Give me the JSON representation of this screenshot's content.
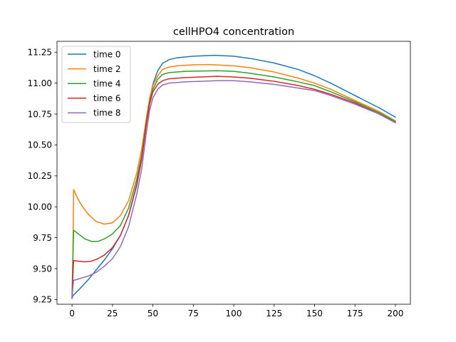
{
  "chart_data": {
    "type": "line",
    "title": "cellHPO4 concentration",
    "xlabel": "",
    "ylabel": "",
    "xlim": [
      -9.3,
      209.3
    ],
    "ylim": [
      9.212,
      11.338
    ],
    "xticks": [
      0,
      25,
      50,
      75,
      100,
      125,
      150,
      175,
      200
    ],
    "yticks": [
      9.25,
      9.5,
      9.75,
      10.0,
      10.25,
      10.5,
      10.75,
      11.0,
      11.25
    ],
    "ytick_labels": [
      "9.25",
      "9.50",
      "9.75",
      "10.00",
      "10.25",
      "10.50",
      "10.75",
      "11.00",
      "11.25"
    ],
    "grid": false,
    "legend_position": "upper-left",
    "series": [
      {
        "name": "time 0",
        "color": "#1f77b4",
        "points": [
          [
            0,
            9.26
          ],
          [
            0.5,
            9.28
          ],
          [
            5,
            9.34
          ],
          [
            10,
            9.41
          ],
          [
            15,
            9.49
          ],
          [
            20,
            9.57
          ],
          [
            25,
            9.66
          ],
          [
            30,
            9.77
          ],
          [
            35,
            9.93
          ],
          [
            40,
            10.17
          ],
          [
            43,
            10.38
          ],
          [
            46,
            10.68
          ],
          [
            48,
            10.87
          ],
          [
            50,
            10.99
          ],
          [
            53,
            11.1
          ],
          [
            56,
            11.16
          ],
          [
            60,
            11.19
          ],
          [
            65,
            11.205
          ],
          [
            75,
            11.218
          ],
          [
            88,
            11.225
          ],
          [
            100,
            11.218
          ],
          [
            110,
            11.2
          ],
          [
            125,
            11.163
          ],
          [
            140,
            11.11
          ],
          [
            150,
            11.06
          ],
          [
            160,
            11.0
          ],
          [
            175,
            10.9
          ],
          [
            190,
            10.8
          ],
          [
            200,
            10.725
          ]
        ]
      },
      {
        "name": "time 2",
        "color": "#ff7f0e",
        "points": [
          [
            0,
            9.26
          ],
          [
            0.5,
            9.6
          ],
          [
            1,
            10.14
          ],
          [
            3,
            10.08
          ],
          [
            6,
            10.01
          ],
          [
            10,
            9.94
          ],
          [
            15,
            9.88
          ],
          [
            20,
            9.86
          ],
          [
            25,
            9.87
          ],
          [
            30,
            9.93
          ],
          [
            35,
            10.05
          ],
          [
            40,
            10.27
          ],
          [
            43,
            10.46
          ],
          [
            46,
            10.72
          ],
          [
            48,
            10.88
          ],
          [
            50,
            10.98
          ],
          [
            53,
            11.06
          ],
          [
            56,
            11.11
          ],
          [
            60,
            11.13
          ],
          [
            65,
            11.14
          ],
          [
            75,
            11.148
          ],
          [
            85,
            11.15
          ],
          [
            100,
            11.14
          ],
          [
            110,
            11.125
          ],
          [
            125,
            11.09
          ],
          [
            140,
            11.04
          ],
          [
            150,
            11.0
          ],
          [
            160,
            10.95
          ],
          [
            175,
            10.86
          ],
          [
            190,
            10.77
          ],
          [
            200,
            10.695
          ]
        ]
      },
      {
        "name": "time 4",
        "color": "#2ca02c",
        "points": [
          [
            0,
            9.26
          ],
          [
            0.5,
            9.55
          ],
          [
            1,
            9.81
          ],
          [
            4,
            9.78
          ],
          [
            8,
            9.74
          ],
          [
            12,
            9.72
          ],
          [
            16,
            9.72
          ],
          [
            20,
            9.74
          ],
          [
            25,
            9.78
          ],
          [
            30,
            9.85
          ],
          [
            35,
            9.99
          ],
          [
            40,
            10.22
          ],
          [
            43,
            10.41
          ],
          [
            46,
            10.69
          ],
          [
            48,
            10.85
          ],
          [
            50,
            10.95
          ],
          [
            53,
            11.03
          ],
          [
            56,
            11.07
          ],
          [
            60,
            11.085
          ],
          [
            70,
            11.095
          ],
          [
            90,
            11.1
          ],
          [
            100,
            11.095
          ],
          [
            110,
            11.08
          ],
          [
            125,
            11.05
          ],
          [
            140,
            11.01
          ],
          [
            150,
            10.98
          ],
          [
            160,
            10.93
          ],
          [
            175,
            10.85
          ],
          [
            190,
            10.76
          ],
          [
            200,
            10.69
          ]
        ]
      },
      {
        "name": "time 6",
        "color": "#d62728",
        "points": [
          [
            0,
            9.26
          ],
          [
            0.5,
            9.45
          ],
          [
            1,
            9.565
          ],
          [
            4,
            9.56
          ],
          [
            8,
            9.555
          ],
          [
            12,
            9.56
          ],
          [
            16,
            9.58
          ],
          [
            20,
            9.61
          ],
          [
            25,
            9.67
          ],
          [
            30,
            9.77
          ],
          [
            35,
            9.93
          ],
          [
            40,
            10.18
          ],
          [
            43,
            10.38
          ],
          [
            46,
            10.67
          ],
          [
            48,
            10.83
          ],
          [
            50,
            10.93
          ],
          [
            53,
            10.99
          ],
          [
            56,
            11.02
          ],
          [
            60,
            11.035
          ],
          [
            70,
            11.045
          ],
          [
            90,
            11.055
          ],
          [
            100,
            11.05
          ],
          [
            110,
            11.04
          ],
          [
            125,
            11.015
          ],
          [
            140,
            10.98
          ],
          [
            150,
            10.95
          ],
          [
            160,
            10.91
          ],
          [
            175,
            10.84
          ],
          [
            190,
            10.75
          ],
          [
            200,
            10.68
          ]
        ]
      },
      {
        "name": "time 8",
        "color": "#9467bd",
        "points": [
          [
            0,
            9.26
          ],
          [
            0.5,
            9.35
          ],
          [
            1,
            9.405
          ],
          [
            5,
            9.42
          ],
          [
            10,
            9.44
          ],
          [
            15,
            9.47
          ],
          [
            20,
            9.52
          ],
          [
            25,
            9.58
          ],
          [
            30,
            9.68
          ],
          [
            35,
            9.84
          ],
          [
            40,
            10.1
          ],
          [
            43,
            10.3
          ],
          [
            46,
            10.6
          ],
          [
            48,
            10.78
          ],
          [
            50,
            10.88
          ],
          [
            53,
            10.95
          ],
          [
            56,
            10.985
          ],
          [
            60,
            11.0
          ],
          [
            70,
            11.01
          ],
          [
            90,
            11.02
          ],
          [
            100,
            11.02
          ],
          [
            110,
            11.01
          ],
          [
            125,
            10.99
          ],
          [
            140,
            10.96
          ],
          [
            150,
            10.94
          ],
          [
            160,
            10.9
          ],
          [
            175,
            10.83
          ],
          [
            190,
            10.75
          ],
          [
            200,
            10.68
          ]
        ]
      }
    ]
  }
}
